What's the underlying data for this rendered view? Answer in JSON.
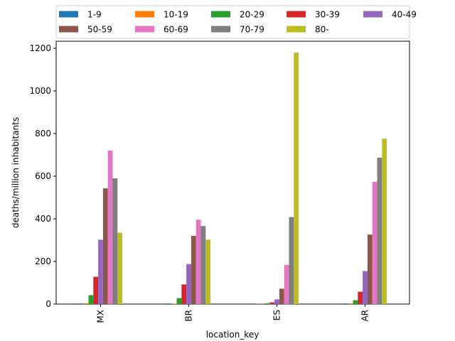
{
  "chart_data": {
    "type": "bar",
    "title": "",
    "xlabel": "location_key",
    "ylabel": "deaths/million inhabitants",
    "categories": [
      "MX",
      "BR",
      "ES",
      "AR"
    ],
    "ylim": [
      0,
      1200
    ],
    "yticks": [
      0,
      200,
      400,
      600,
      800,
      1000,
      1200
    ],
    "grid": false,
    "legend_position": "top (above plot, 5 columns)",
    "series": [
      {
        "name": "1-9",
        "color": "#1f77b4",
        "values": [
          3,
          3,
          1,
          3
        ]
      },
      {
        "name": "10-19",
        "color": "#ff7f0e",
        "values": [
          4,
          2,
          1,
          3
        ]
      },
      {
        "name": "20-29",
        "color": "#2ca02c",
        "values": [
          42,
          28,
          4,
          18
        ]
      },
      {
        "name": "30-39",
        "color": "#d62728",
        "values": [
          128,
          92,
          8,
          58
        ]
      },
      {
        "name": "40-49",
        "color": "#9467bd",
        "values": [
          302,
          188,
          22,
          155
        ]
      },
      {
        "name": "50-59",
        "color": "#8c564b",
        "values": [
          543,
          320,
          72,
          326
        ]
      },
      {
        "name": "60-69",
        "color": "#e377c2",
        "values": [
          720,
          396,
          184,
          574
        ]
      },
      {
        "name": "70-79",
        "color": "#7f7f7f",
        "values": [
          590,
          366,
          408,
          687
        ]
      },
      {
        "name": "80-",
        "color": "#bcbd22",
        "values": [
          335,
          302,
          1180,
          776
        ]
      }
    ]
  }
}
